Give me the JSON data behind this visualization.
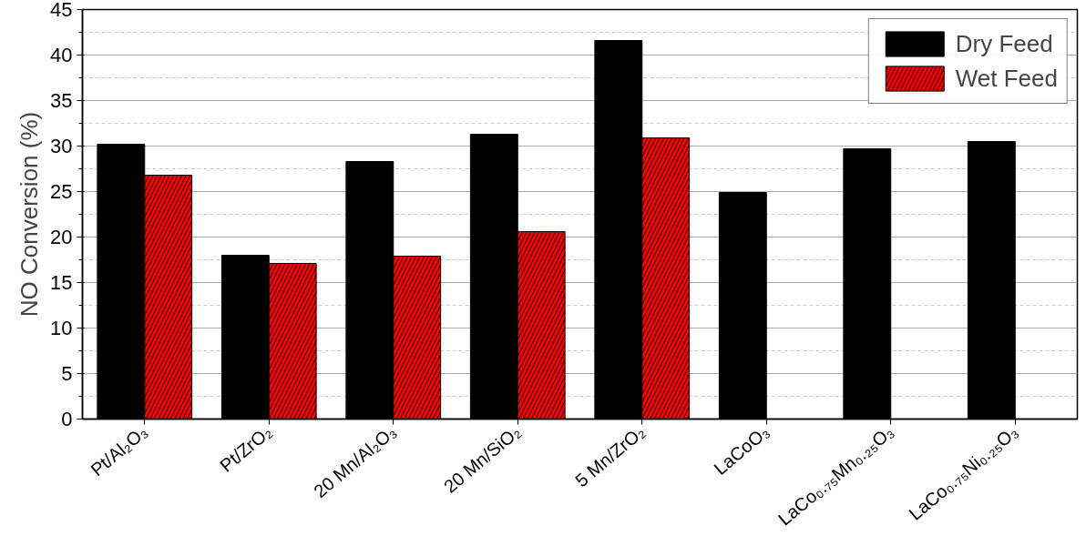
{
  "chart_data": {
    "type": "bar",
    "ylabel": "NO Conversion (%)",
    "categories": [
      "Pt/Al₂O₃",
      "Pt/ZrO₂",
      "20 Mn/Al₂O₃",
      "20 Mn/SiO₂",
      "5 Mn/ZrO₂",
      "LaCoO₃",
      "LaCo₀.₇₅Mn₀.₂₅O₃",
      "LaCo₀.₇₅Ni₀.₂₅O₃"
    ],
    "series": [
      {
        "name": "Dry Feed",
        "color": "#000000",
        "values": [
          30.2,
          18.0,
          28.3,
          31.3,
          41.6,
          24.9,
          29.7,
          30.5
        ]
      },
      {
        "name": "Wet Feed",
        "color": "#ff0000",
        "values": [
          26.8,
          17.1,
          17.9,
          20.6,
          30.9,
          null,
          null,
          null
        ]
      }
    ],
    "ylim": [
      0,
      45
    ],
    "yticks": [
      0,
      5,
      10,
      15,
      20,
      25,
      30,
      35,
      40,
      45
    ],
    "grid": "y",
    "legend": "top right"
  }
}
